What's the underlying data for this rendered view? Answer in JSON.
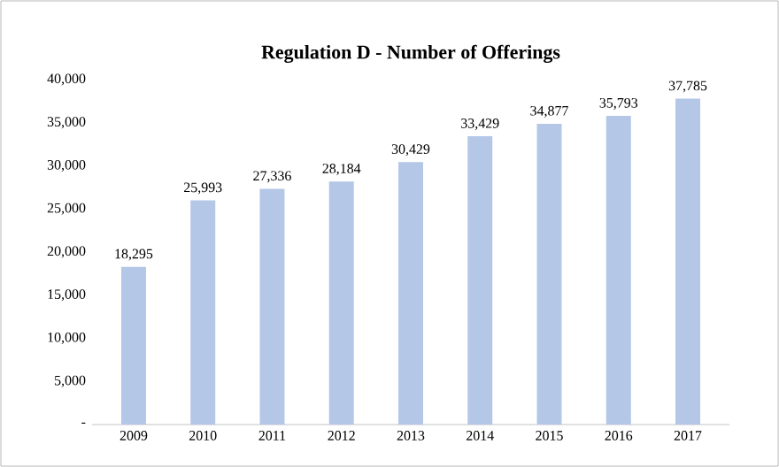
{
  "chart_data": {
    "type": "bar",
    "title": "Regulation D - Number of Offerings",
    "categories": [
      "2009",
      "2010",
      "2011",
      "2012",
      "2013",
      "2014",
      "2015",
      "2016",
      "2017"
    ],
    "values": [
      18295,
      25993,
      27336,
      28184,
      30429,
      33429,
      34877,
      35793,
      37785
    ],
    "color": "#b4c7e7",
    "value_labels": [
      "18,295",
      "25,993",
      "27,336",
      "28,184",
      "30,429",
      "33,429",
      "34,877",
      "35,793",
      "37,785"
    ],
    "ylim": [
      0,
      40000
    ],
    "yticks": [
      {
        "value": 0,
        "label": "-"
      },
      {
        "value": 5000,
        "label": "5,000"
      },
      {
        "value": 10000,
        "label": "10,000"
      },
      {
        "value": 15000,
        "label": "15,000"
      },
      {
        "value": 20000,
        "label": "20,000"
      },
      {
        "value": 25000,
        "label": "25,000"
      },
      {
        "value": 30000,
        "label": "30,000"
      },
      {
        "value": 35000,
        "label": "35,000"
      },
      {
        "value": 40000,
        "label": "40,000"
      }
    ],
    "grid": false
  }
}
